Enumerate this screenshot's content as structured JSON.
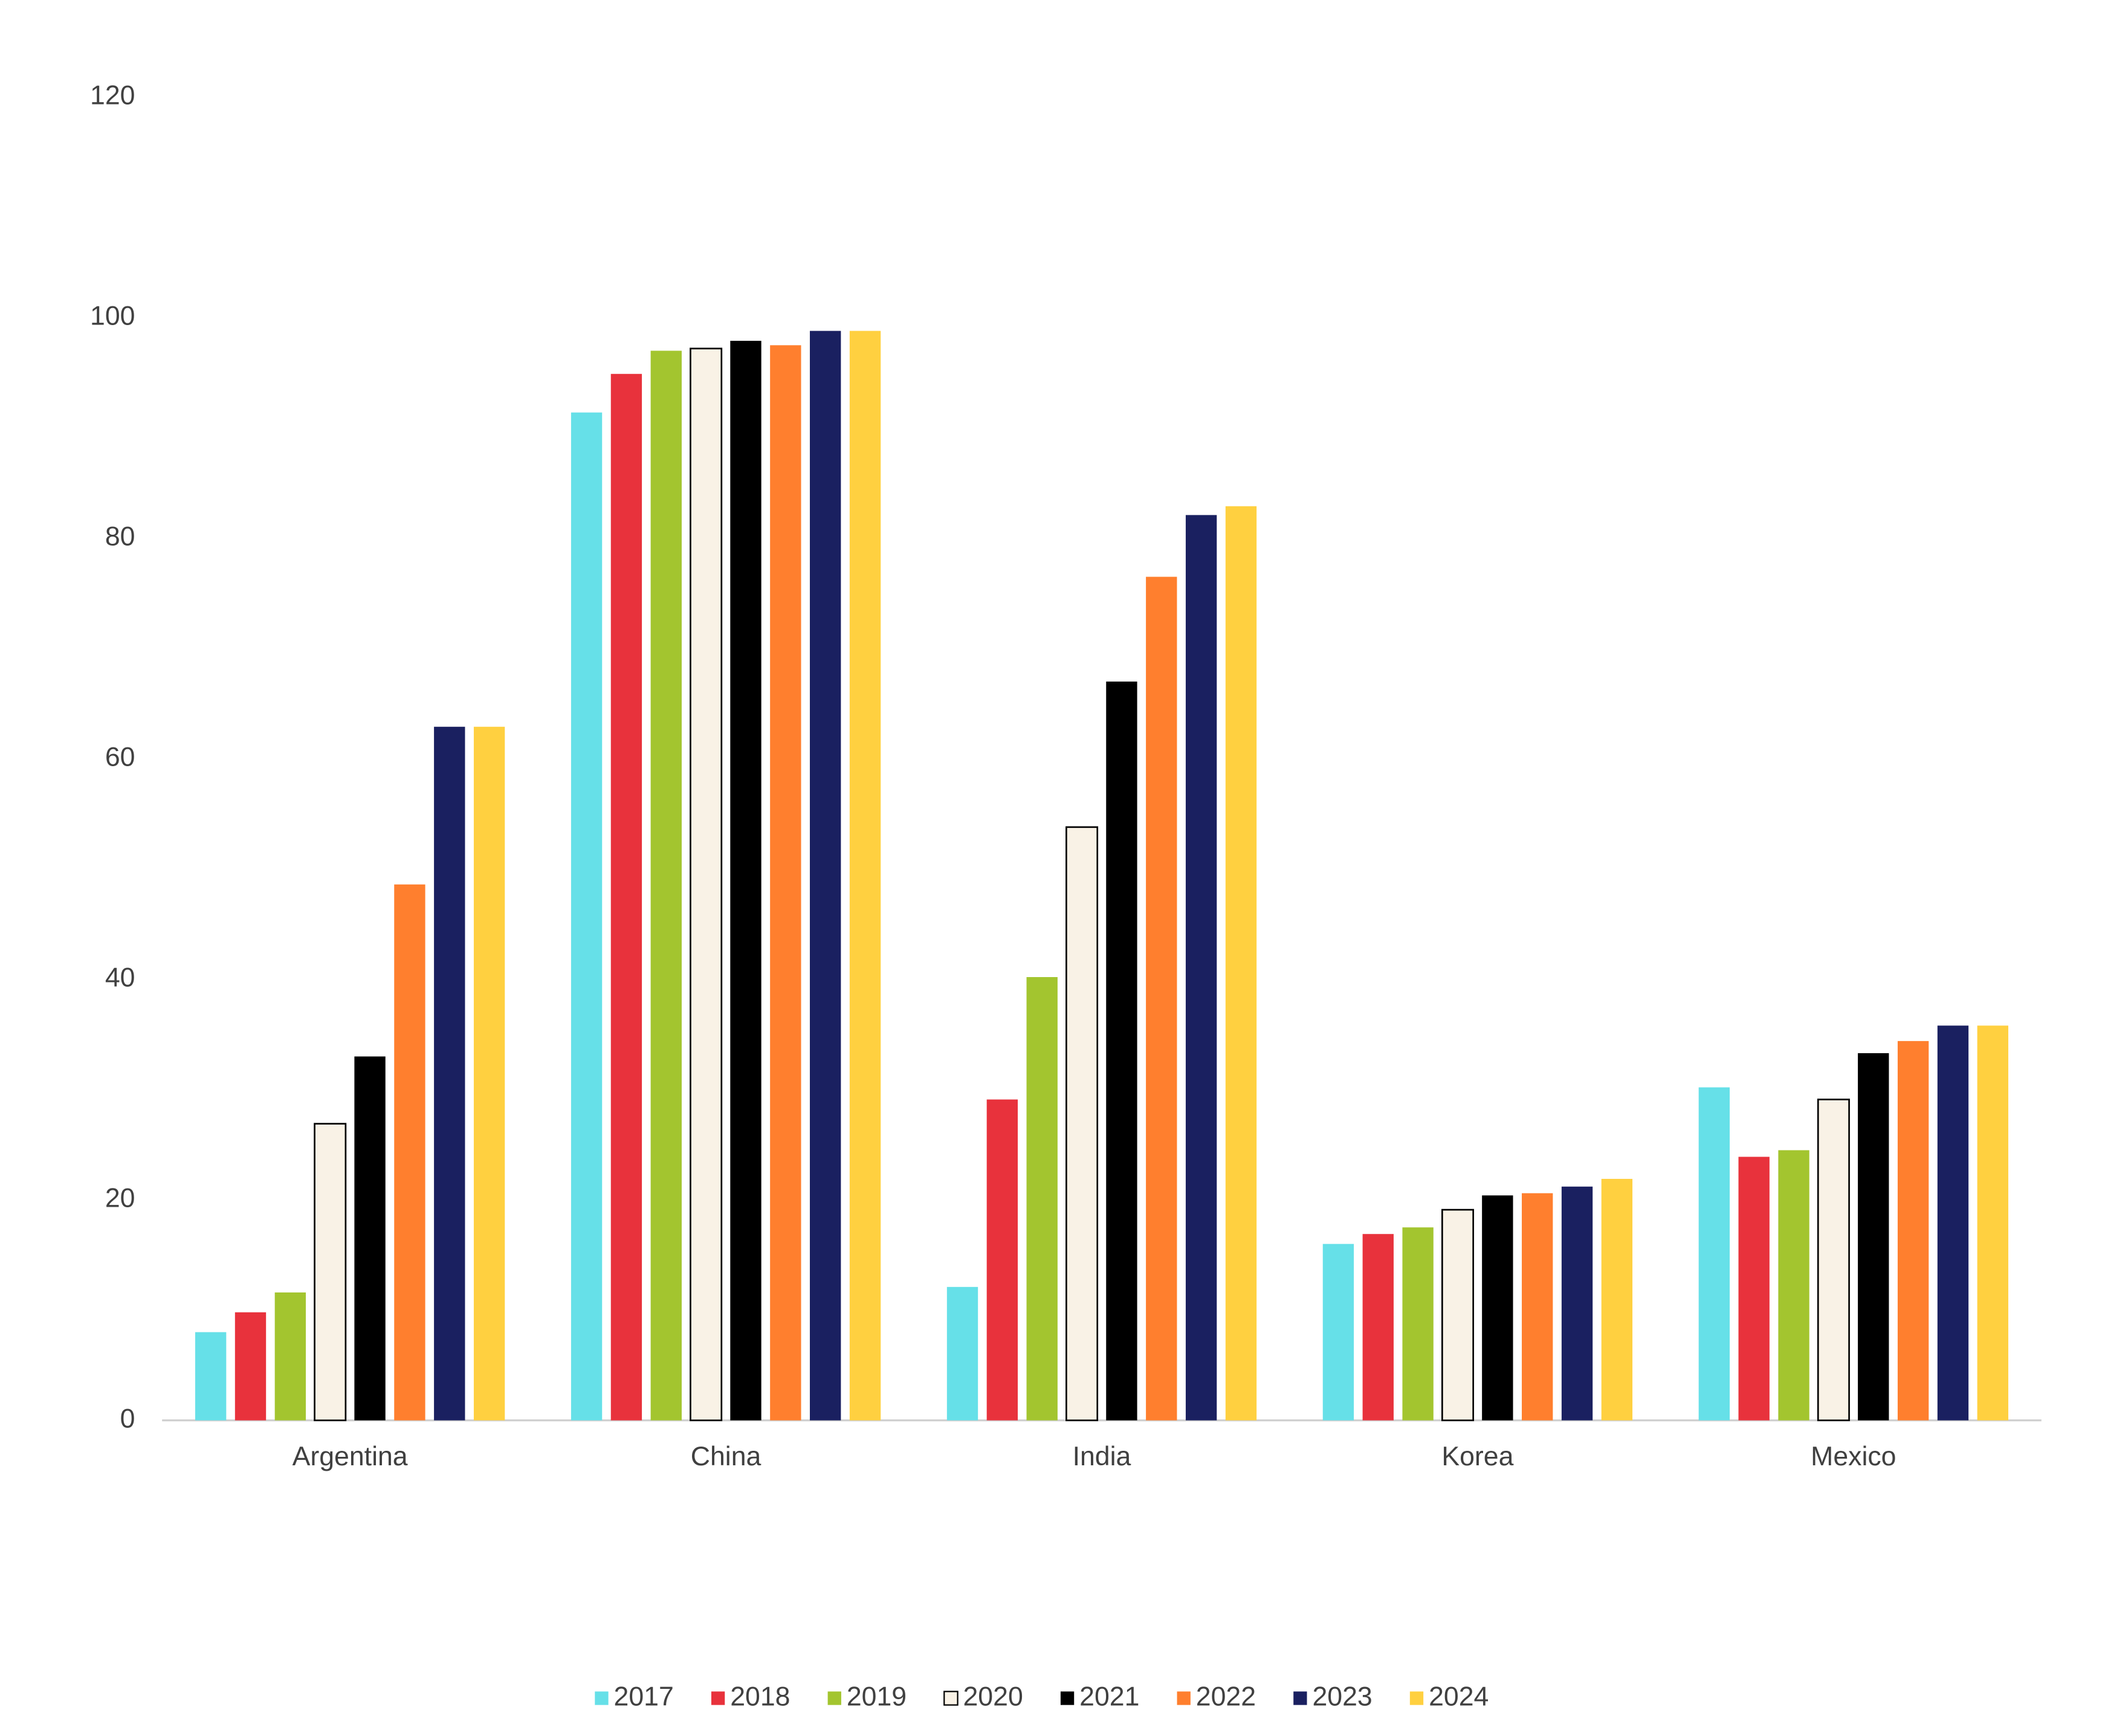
{
  "chart_data": {
    "type": "bar",
    "categories": [
      "Argentina",
      "China",
      "India",
      "Korea",
      "Mexico"
    ],
    "series": [
      {
        "name": "2017",
        "color": "#66e0e8",
        "values": [
          8.0,
          91.4,
          12.1,
          16.0,
          30.2
        ]
      },
      {
        "name": "2018",
        "color": "#e8323c",
        "values": [
          9.8,
          94.9,
          29.1,
          16.9,
          23.9
        ]
      },
      {
        "name": "2019",
        "color": "#a3c52f",
        "values": [
          11.6,
          97.0,
          40.2,
          17.5,
          24.5
        ]
      },
      {
        "name": "2020",
        "color": "#f9f2e6",
        "edgecolor": "#000000",
        "values": [
          26.9,
          97.2,
          53.8,
          19.1,
          29.1
        ]
      },
      {
        "name": "2021",
        "color": "#000000",
        "values": [
          33.0,
          97.9,
          67.0,
          20.4,
          33.3
        ]
      },
      {
        "name": "2022",
        "color": "#ff7f2e",
        "values": [
          48.6,
          97.5,
          76.5,
          20.6,
          34.4
        ]
      },
      {
        "name": "2023",
        "color": "#1a2060",
        "values": [
          62.9,
          98.8,
          82.1,
          21.2,
          35.8
        ]
      },
      {
        "name": "2024",
        "color": "#ffd040",
        "values": [
          62.9,
          98.8,
          82.9,
          21.9,
          35.8
        ]
      }
    ],
    "ylim": [
      0,
      120
    ],
    "yticks": [
      0,
      20,
      40,
      60,
      80,
      100,
      120
    ],
    "grid": false,
    "legend": "bottom"
  }
}
